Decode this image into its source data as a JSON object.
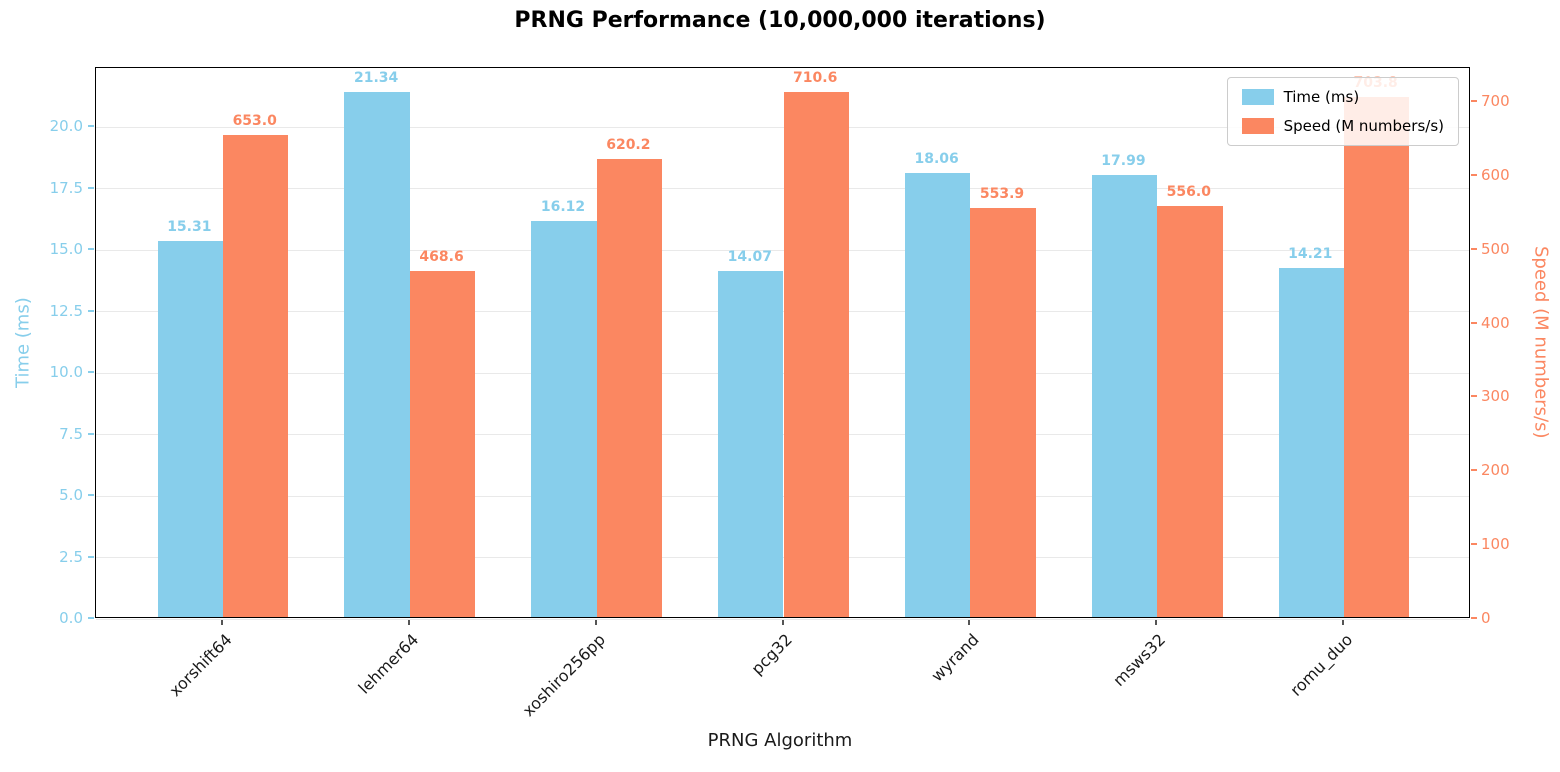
{
  "chart_data": {
    "type": "bar",
    "title": "PRNG Performance (10,000,000 iterations)",
    "categories": [
      "xorshift64",
      "lehmer64",
      "xoshiro256pp",
      "pcg32",
      "wyrand",
      "msws32",
      "romu_duo"
    ],
    "series": [
      {
        "name": "Time (ms)",
        "axis": "left",
        "color": "#87CEEB",
        "values": [
          15.31,
          21.34,
          16.12,
          14.07,
          18.06,
          17.99,
          14.21
        ],
        "labels": [
          "15.31",
          "21.34",
          "16.12",
          "14.07",
          "18.06",
          "17.99",
          "14.21"
        ]
      },
      {
        "name": "Speed (M numbers/s)",
        "axis": "right",
        "color": "#FB8761",
        "values": [
          653.0,
          468.6,
          620.2,
          710.6,
          553.9,
          556.0,
          703.8
        ],
        "labels": [
          "653.0",
          "468.6",
          "620.2",
          "710.6",
          "553.9",
          "556.0",
          "703.8"
        ]
      }
    ],
    "axes": {
      "left": {
        "label": "Time (ms)",
        "color": "#87CEEB",
        "lim": [
          0,
          22.41
        ],
        "ticks": [
          "0.0",
          "2.5",
          "5.0",
          "7.5",
          "10.0",
          "12.5",
          "15.0",
          "17.5",
          "20.0"
        ]
      },
      "right": {
        "label": "Speed (M numbers/s)",
        "color": "#FB8761",
        "lim": [
          0,
          746.1
        ],
        "ticks": [
          "0",
          "100",
          "200",
          "300",
          "400",
          "500",
          "600",
          "700"
        ]
      },
      "x": {
        "label": "PRNG Algorithm"
      }
    },
    "grid": true,
    "legend": {
      "position": "upper right",
      "entries": [
        "Time (ms)",
        "Speed (M numbers/s)"
      ]
    }
  }
}
